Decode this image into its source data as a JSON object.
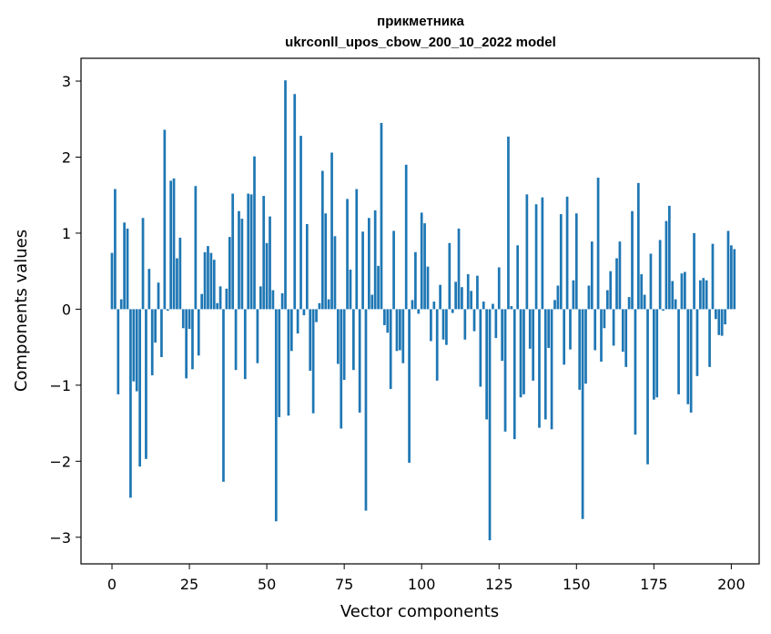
{
  "chart_data": {
    "type": "bar",
    "title": "прикметника",
    "subtitle": "ukrconll_upos_cbow_200_10_2022 model",
    "xlabel": "Vector components",
    "ylabel": "Components values",
    "xlim": [
      -10,
      209
    ],
    "ylim": [
      -3.35,
      3.3
    ],
    "xticks": [
      0,
      25,
      50,
      75,
      100,
      125,
      150,
      175,
      200
    ],
    "yticks": [
      -3,
      -2,
      -1,
      0,
      1,
      2,
      3
    ],
    "ytick_labels": [
      "−3",
      "−2",
      "−1",
      "0",
      "1",
      "2",
      "3"
    ],
    "grid": false,
    "bar_color": "#1f77b4",
    "values": [
      0.74,
      1.58,
      -1.12,
      0.13,
      1.14,
      1.06,
      -2.48,
      -0.95,
      -1.08,
      -2.07,
      1.2,
      -1.97,
      0.53,
      -0.87,
      -0.44,
      0.35,
      -0.63,
      2.36,
      -0.02,
      1.69,
      1.72,
      0.67,
      0.94,
      -0.25,
      -0.91,
      -0.26,
      -0.79,
      1.62,
      -0.61,
      0.2,
      0.75,
      0.83,
      0.74,
      0.65,
      0.08,
      0.3,
      -2.27,
      0.27,
      0.95,
      1.52,
      -0.8,
      1.29,
      1.19,
      -0.92,
      1.52,
      1.51,
      2.01,
      -0.71,
      0.3,
      1.49,
      0.87,
      1.22,
      0.25,
      -2.79,
      -1.42,
      0.21,
      3.01,
      -1.4,
      -0.55,
      2.83,
      -0.32,
      2.28,
      -0.08,
      1.12,
      -0.81,
      -1.37,
      -0.17,
      0.08,
      1.82,
      1.26,
      0.13,
      2.06,
      0.96,
      -0.72,
      -1.57,
      -0.93,
      1.45,
      0.52,
      -0.8,
      1.58,
      -1.36,
      1.02,
      -2.65,
      1.2,
      0.19,
      1.3,
      0.57,
      2.45,
      -0.21,
      -0.31,
      -1.05,
      1.03,
      -0.55,
      -0.54,
      -0.71,
      1.9,
      -2.02,
      0.12,
      0.75,
      -0.06,
      1.27,
      1.13,
      0.56,
      -0.42,
      0.1,
      -0.94,
      0.32,
      -0.4,
      -0.47,
      0.87,
      -0.05,
      0.36,
      1.06,
      0.29,
      -0.4,
      0.46,
      0.24,
      -0.29,
      0.44,
      -1.02,
      0.1,
      -1.45,
      -3.04,
      0.07,
      -0.38,
      0.55,
      -0.68,
      -1.61,
      2.27,
      0.04,
      -1.71,
      0.84,
      -1.16,
      -1.12,
      1.51,
      -0.52,
      -0.94,
      1.38,
      -1.56,
      1.47,
      -1.45,
      -0.51,
      -1.58,
      0.12,
      0.31,
      1.25,
      -0.73,
      1.48,
      -0.53,
      0.38,
      1.26,
      -1.06,
      -2.76,
      -0.98,
      0.31,
      0.89,
      -0.54,
      1.73,
      -0.69,
      -0.25,
      0.25,
      0.5,
      -0.48,
      0.67,
      0.89,
      -0.56,
      -0.76,
      0.16,
      1.29,
      -1.65,
      1.66,
      0.46,
      0.19,
      -2.04,
      0.73,
      -1.19,
      -1.16,
      0.91,
      -0.02,
      1.16,
      1.36,
      0.37,
      0.13,
      -1.12,
      0.47,
      0.49,
      -1.25,
      -1.36,
      1.0,
      -0.88,
      0.38,
      0.41,
      0.38,
      -0.76,
      0.86,
      -0.13,
      -0.34,
      -0.35,
      -0.2,
      1.03,
      0.84,
      0.79
    ]
  }
}
